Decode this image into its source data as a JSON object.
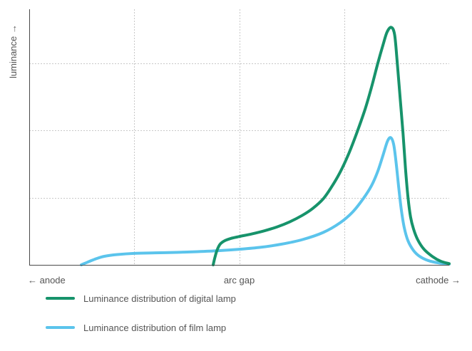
{
  "chart_data": {
    "type": "line",
    "title": "",
    "ylabel": "luminance →",
    "xlabel": "",
    "x_tick_labels": [
      {
        "label": "← anode",
        "x": 0
      },
      {
        "label": "arc gap",
        "x": 50
      },
      {
        "label": "cathode →",
        "x": 100
      }
    ],
    "xlim": [
      0,
      100
    ],
    "ylim": [
      0,
      100
    ],
    "grid": true,
    "x_gridlines": [
      25,
      50,
      75
    ],
    "y_gridlines": [
      28,
      56,
      84
    ],
    "legend_position": "bottom",
    "series": [
      {
        "name": "Luminance distribution of digital lamp",
        "color": "#17936B",
        "points": [
          [
            43.8,
            0
          ],
          [
            44.2,
            3
          ],
          [
            44.7,
            6
          ],
          [
            45.4,
            8.5
          ],
          [
            46.5,
            10
          ],
          [
            48,
            11
          ],
          [
            50,
            11.8
          ],
          [
            53,
            12.9
          ],
          [
            56,
            14.2
          ],
          [
            59,
            15.8
          ],
          [
            62,
            17.9
          ],
          [
            65,
            20.6
          ],
          [
            67.5,
            23.5
          ],
          [
            70,
            27.5
          ],
          [
            72,
            32.5
          ],
          [
            74,
            38.5
          ],
          [
            76,
            46
          ],
          [
            78,
            55
          ],
          [
            80,
            65
          ],
          [
            81.5,
            74
          ],
          [
            83,
            84
          ],
          [
            84.3,
            92
          ],
          [
            85.2,
            97
          ],
          [
            86.2,
            99
          ],
          [
            87,
            96
          ],
          [
            87.6,
            85
          ],
          [
            88.3,
            70
          ],
          [
            89,
            55
          ],
          [
            89.6,
            40
          ],
          [
            90.2,
            28
          ],
          [
            90.8,
            20
          ],
          [
            91.5,
            15
          ],
          [
            92.5,
            10.5
          ],
          [
            94,
            6.5
          ],
          [
            96,
            3.5
          ],
          [
            98,
            1.5
          ],
          [
            100,
            0.5
          ]
        ]
      },
      {
        "name": "Luminance distribution of film lamp",
        "color": "#5BC4EC",
        "points": [
          [
            12.4,
            0
          ],
          [
            14,
            1.2
          ],
          [
            16,
            2.6
          ],
          [
            18,
            3.6
          ],
          [
            21,
            4.3
          ],
          [
            25,
            4.8
          ],
          [
            30,
            5
          ],
          [
            35,
            5.2
          ],
          [
            40,
            5.5
          ],
          [
            45,
            5.9
          ],
          [
            50,
            6.5
          ],
          [
            55,
            7.3
          ],
          [
            60,
            8.6
          ],
          [
            65,
            10.5
          ],
          [
            70,
            13.5
          ],
          [
            74,
            17.5
          ],
          [
            77,
            22
          ],
          [
            79.5,
            27.5
          ],
          [
            81.5,
            33
          ],
          [
            83,
            39
          ],
          [
            84.3,
            46
          ],
          [
            85.3,
            51.5
          ],
          [
            86.1,
            53
          ],
          [
            86.8,
            50
          ],
          [
            87.4,
            42
          ],
          [
            88,
            32
          ],
          [
            88.6,
            23
          ],
          [
            89.3,
            15.5
          ],
          [
            90.2,
            10
          ],
          [
            91.5,
            6
          ],
          [
            93,
            3.5
          ],
          [
            95,
            1.8
          ],
          [
            97.5,
            0.8
          ],
          [
            100,
            0.3
          ]
        ]
      }
    ]
  }
}
